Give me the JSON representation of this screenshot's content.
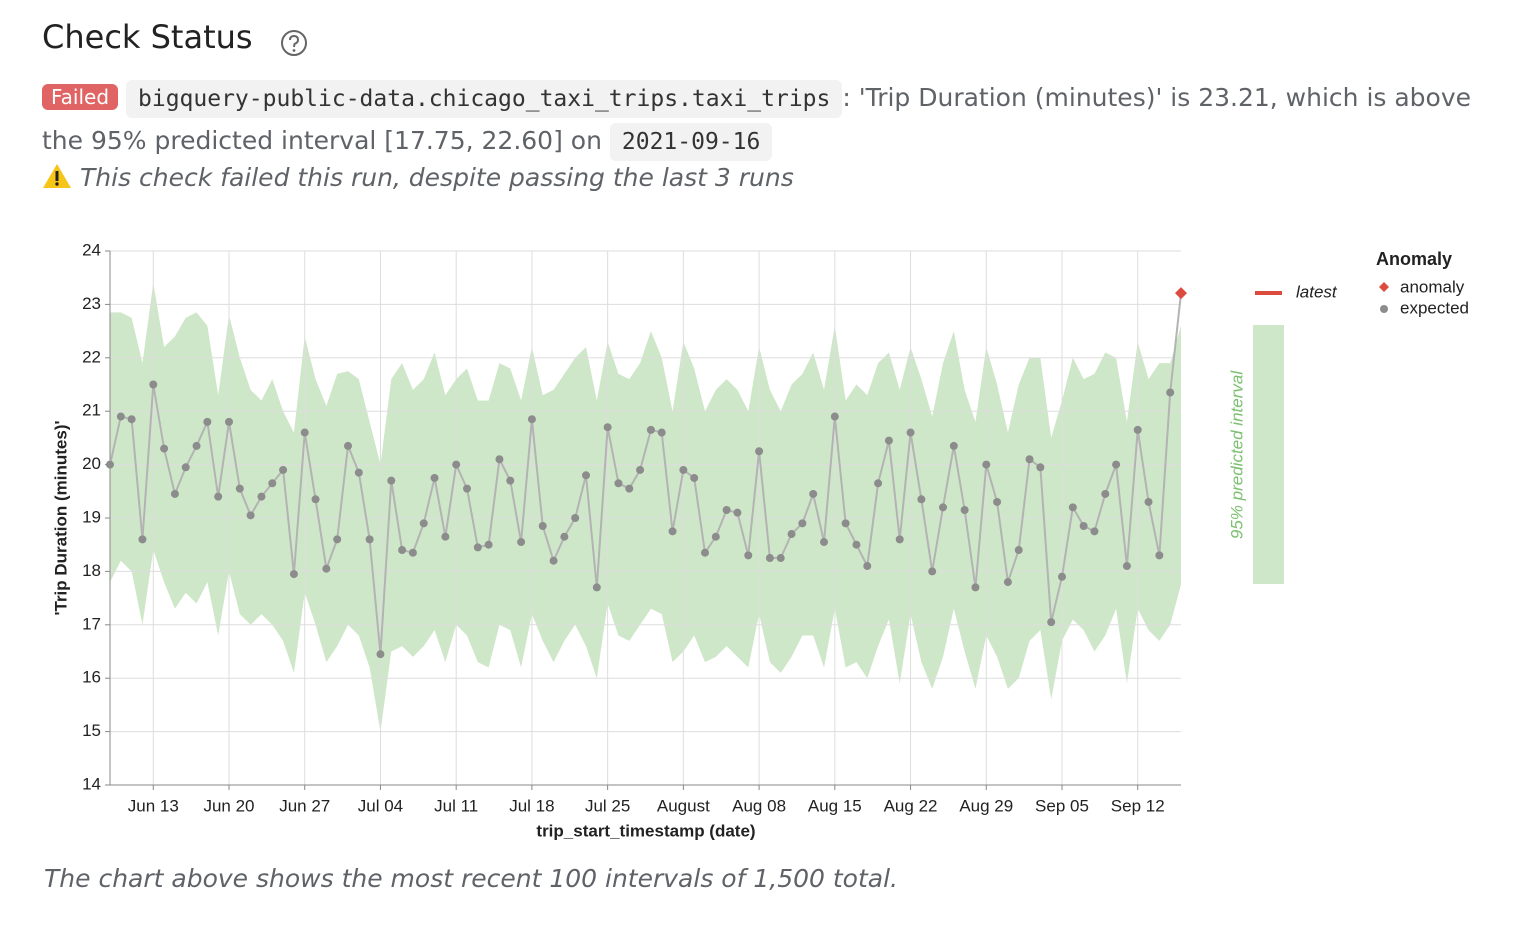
{
  "header": {
    "title": "Check Status"
  },
  "status": {
    "badge": "Failed",
    "table": "bigquery-public-data.chicago_taxi_trips.taxi_trips",
    "message": ": 'Trip Duration (minutes)' is 23.21, which is above the 95% predicted interval [17.75, 22.60] on",
    "date": "2021-09-16",
    "warning": "This check failed this run, despite passing the last 3 runs"
  },
  "chart_data": {
    "type": "line",
    "x_label": "trip_start_timestamp (date)",
    "y_label": "'Trip Duration (minutes)'",
    "x": [
      "2021-06-09",
      "2021-06-10",
      "2021-06-11",
      "2021-06-12",
      "2021-06-13",
      "2021-06-14",
      "2021-06-15",
      "2021-06-16",
      "2021-06-17",
      "2021-06-18",
      "2021-06-19",
      "2021-06-20",
      "2021-06-21",
      "2021-06-22",
      "2021-06-23",
      "2021-06-24",
      "2021-06-25",
      "2021-06-26",
      "2021-06-27",
      "2021-06-28",
      "2021-06-29",
      "2021-06-30",
      "2021-07-01",
      "2021-07-02",
      "2021-07-03",
      "2021-07-04",
      "2021-07-05",
      "2021-07-06",
      "2021-07-07",
      "2021-07-08",
      "2021-07-09",
      "2021-07-10",
      "2021-07-11",
      "2021-07-12",
      "2021-07-13",
      "2021-07-14",
      "2021-07-15",
      "2021-07-16",
      "2021-07-17",
      "2021-07-18",
      "2021-07-19",
      "2021-07-20",
      "2021-07-21",
      "2021-07-22",
      "2021-07-23",
      "2021-07-24",
      "2021-07-25",
      "2021-07-26",
      "2021-07-27",
      "2021-07-28",
      "2021-07-29",
      "2021-07-30",
      "2021-07-31",
      "2021-08-01",
      "2021-08-02",
      "2021-08-03",
      "2021-08-04",
      "2021-08-05",
      "2021-08-06",
      "2021-08-07",
      "2021-08-08",
      "2021-08-09",
      "2021-08-10",
      "2021-08-11",
      "2021-08-12",
      "2021-08-13",
      "2021-08-14",
      "2021-08-15",
      "2021-08-16",
      "2021-08-17",
      "2021-08-18",
      "2021-08-19",
      "2021-08-20",
      "2021-08-21",
      "2021-08-22",
      "2021-08-23",
      "2021-08-24",
      "2021-08-25",
      "2021-08-26",
      "2021-08-27",
      "2021-08-28",
      "2021-08-29",
      "2021-08-30",
      "2021-08-31",
      "2021-09-01",
      "2021-09-02",
      "2021-09-03",
      "2021-09-04",
      "2021-09-05",
      "2021-09-06",
      "2021-09-07",
      "2021-09-08",
      "2021-09-09",
      "2021-09-10",
      "2021-09-11",
      "2021-09-12",
      "2021-09-13",
      "2021-09-14",
      "2021-09-15",
      "2021-09-16"
    ],
    "series": [
      {
        "name": "expected",
        "color": "#8c8c8c",
        "line_color": "#b3b3b3",
        "values": [
          20.0,
          20.9,
          20.85,
          18.6,
          21.5,
          20.3,
          19.45,
          19.95,
          20.35,
          20.8,
          19.4,
          20.8,
          19.55,
          19.05,
          19.4,
          19.65,
          19.9,
          17.95,
          20.6,
          19.35,
          18.05,
          18.6,
          20.35,
          19.85,
          18.6,
          16.45,
          19.7,
          18.4,
          18.35,
          18.9,
          19.75,
          18.65,
          20.0,
          19.55,
          18.45,
          18.5,
          20.1,
          19.7,
          18.55,
          20.85,
          18.85,
          18.2,
          18.65,
          19.0,
          19.8,
          17.7,
          20.7,
          19.65,
          19.55,
          19.9,
          20.65,
          20.6,
          18.75,
          19.9,
          19.75,
          18.35,
          18.65,
          19.15,
          19.1,
          18.3,
          20.25,
          18.25,
          18.25,
          18.7,
          18.9,
          19.45,
          18.55,
          20.9,
          18.9,
          18.5,
          18.1,
          19.65,
          20.45,
          18.6,
          20.6,
          19.35,
          18.0,
          19.2,
          20.35,
          19.15,
          17.7,
          20.0,
          19.3,
          17.8,
          18.4,
          20.1,
          19.95,
          17.05,
          17.9,
          19.2,
          18.85,
          18.75,
          19.45,
          20.0,
          18.1,
          20.65,
          19.3,
          18.3,
          21.35,
          23.21
        ]
      }
    ],
    "band": {
      "name": "95% predicted interval",
      "color": "#cfe7c9",
      "label_color": "#7cc06f",
      "upper": [
        22.85,
        22.85,
        22.75,
        21.9,
        23.4,
        22.2,
        22.4,
        22.75,
        22.85,
        22.6,
        21.3,
        22.8,
        22.0,
        21.4,
        21.2,
        21.6,
        21.0,
        20.6,
        22.4,
        21.6,
        21.1,
        21.7,
        21.75,
        21.6,
        20.8,
        20.0,
        21.6,
        21.9,
        21.4,
        21.6,
        22.1,
        21.3,
        21.6,
        21.8,
        21.2,
        21.2,
        21.9,
        21.8,
        21.2,
        22.2,
        21.3,
        21.4,
        21.7,
        22.0,
        22.2,
        21.2,
        22.3,
        21.7,
        21.6,
        21.9,
        22.5,
        22.0,
        21.0,
        22.3,
        21.8,
        21.0,
        21.4,
        21.6,
        21.4,
        21.0,
        22.2,
        21.4,
        21.0,
        21.5,
        21.7,
        22.1,
        21.4,
        22.6,
        21.2,
        21.5,
        21.3,
        21.9,
        22.1,
        21.4,
        22.2,
        21.6,
        20.9,
        21.9,
        22.5,
        21.4,
        20.8,
        22.2,
        21.5,
        20.6,
        21.5,
        22.0,
        22.0,
        20.5,
        21.2,
        22.0,
        21.6,
        21.7,
        22.1,
        22.0,
        20.8,
        22.3,
        21.6,
        21.9,
        21.9,
        22.6
      ],
      "lower": [
        17.8,
        18.2,
        18.0,
        17.0,
        18.4,
        17.8,
        17.3,
        17.6,
        17.4,
        17.8,
        16.8,
        18.0,
        17.2,
        17.0,
        17.2,
        17.0,
        16.7,
        16.1,
        17.6,
        17.0,
        16.3,
        16.6,
        17.0,
        16.8,
        16.2,
        15.0,
        16.5,
        16.6,
        16.4,
        16.6,
        16.9,
        16.3,
        17.0,
        16.8,
        16.3,
        16.2,
        17.0,
        16.9,
        16.2,
        17.2,
        16.7,
        16.3,
        16.7,
        17.0,
        16.6,
        16.0,
        17.4,
        16.8,
        16.7,
        17.0,
        17.3,
        17.2,
        16.3,
        16.5,
        16.8,
        16.3,
        16.4,
        16.6,
        16.4,
        16.2,
        17.2,
        16.3,
        16.1,
        16.4,
        16.8,
        16.8,
        16.2,
        17.3,
        16.2,
        16.3,
        16.0,
        16.6,
        17.1,
        15.9,
        17.2,
        16.3,
        15.8,
        16.4,
        17.3,
        16.5,
        15.8,
        16.8,
        16.4,
        15.8,
        16.0,
        16.7,
        16.9,
        15.6,
        16.7,
        17.1,
        16.9,
        16.5,
        16.8,
        17.3,
        15.9,
        17.3,
        16.9,
        16.7,
        17.0,
        17.75
      ]
    },
    "latest": {
      "name": "latest",
      "color": "#dc4b3e"
    },
    "anomaly": {
      "name": "anomaly",
      "color": "#dc4b3e"
    },
    "legend_title": "Anomaly",
    "xlim": [
      "2021-06-09",
      "2021-09-16"
    ],
    "xticks": [
      {
        "value": "2021-06-13",
        "label": "Jun 13"
      },
      {
        "value": "2021-06-20",
        "label": "Jun 20"
      },
      {
        "value": "2021-06-27",
        "label": "Jun 27"
      },
      {
        "value": "2021-07-04",
        "label": "Jul 04"
      },
      {
        "value": "2021-07-11",
        "label": "Jul 11"
      },
      {
        "value": "2021-07-18",
        "label": "Jul 18"
      },
      {
        "value": "2021-07-25",
        "label": "Jul 25"
      },
      {
        "value": "2021-08-01",
        "label": "August"
      },
      {
        "value": "2021-08-08",
        "label": "Aug 08"
      },
      {
        "value": "2021-08-15",
        "label": "Aug 15"
      },
      {
        "value": "2021-08-22",
        "label": "Aug 22"
      },
      {
        "value": "2021-08-29",
        "label": "Aug 29"
      },
      {
        "value": "2021-09-05",
        "label": "Sep 05"
      },
      {
        "value": "2021-09-12",
        "label": "Sep 12"
      }
    ],
    "ylim": [
      14,
      24
    ],
    "yticks": [
      14,
      15,
      16,
      17,
      18,
      19,
      20,
      21,
      22,
      23,
      24
    ],
    "grid": true
  },
  "footer": "The chart above shows the most recent 100 intervals of 1,500 total."
}
